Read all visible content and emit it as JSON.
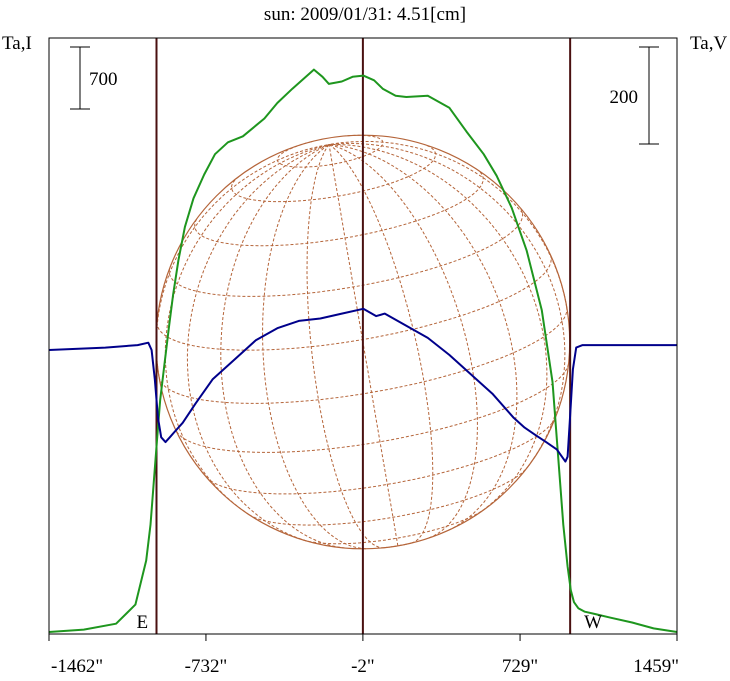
{
  "chart_data": {
    "type": "line",
    "title": "sun: 2009/01/31: 4.51[cm]",
    "title_color": "#1a1a8c",
    "y_left_label": "Ta,I",
    "y_right_label": "Ta,V",
    "x_ticks": [
      "-1462\"",
      "-732\"",
      "-2\"",
      "729\"",
      "1459\""
    ],
    "x_tick_values": [
      -1462,
      -732,
      -2,
      729,
      1459
    ],
    "xlim": [
      -1462,
      1459
    ],
    "scale_bars": [
      {
        "side": "left",
        "label": "700"
      },
      {
        "side": "right",
        "label": "200"
      }
    ],
    "limb_labels": {
      "east": "E",
      "west": "W"
    },
    "markers": [
      -962,
      -2,
      962
    ],
    "disk": {
      "center_x": -2,
      "radius": 962
    },
    "colors": {
      "intensity": "#1e961e",
      "polarization": "#00008b",
      "disk": "#b5653a",
      "markers": "#4a1010",
      "frame": "#000000"
    },
    "series": [
      {
        "name": "",
        "axis": "left",
        "color": "#1e961e",
        "x": [
          -1462,
          -1300,
          -1150,
          -1060,
          -1010,
          -990,
          -975,
          -960,
          -945,
          -925,
          -905,
          -885,
          -860,
          -830,
          -790,
          -740,
          -690,
          -630,
          -560,
          -460,
          -400,
          -330,
          -230,
          -190,
          -160,
          -100,
          -50,
          0,
          50,
          90,
          150,
          200,
          300,
          400,
          480,
          560,
          620,
          690,
          760,
          830,
          880,
          905,
          930,
          950,
          965,
          980,
          1000,
          1030,
          1080,
          1150,
          1250,
          1350,
          1459
        ],
        "y": [
          0,
          20,
          70,
          230,
          600,
          900,
          1250,
          1600,
          1950,
          2250,
          2550,
          2830,
          3120,
          3400,
          3640,
          3840,
          4010,
          4110,
          4160,
          4310,
          4440,
          4560,
          4720,
          4660,
          4600,
          4620,
          4660,
          4670,
          4630,
          4560,
          4500,
          4490,
          4500,
          4400,
          4200,
          4010,
          3830,
          3560,
          3200,
          2700,
          2100,
          1500,
          900,
          550,
          350,
          250,
          200,
          170,
          150,
          120,
          80,
          30,
          0
        ]
      },
      {
        "name": "",
        "axis": "right",
        "color": "#00008b",
        "x": [
          -1462,
          -1200,
          -1050,
          -1000,
          -985,
          -970,
          -955,
          -940,
          -920,
          -900,
          -880,
          -840,
          -780,
          -700,
          -600,
          -500,
          -400,
          -300,
          -200,
          -100,
          0,
          60,
          100,
          200,
          300,
          400,
          500,
          600,
          700,
          750,
          800,
          850,
          900,
          940,
          950,
          960,
          975,
          990,
          1020,
          1100,
          1250,
          1459
        ],
        "y": [
          0,
          5,
          10,
          15,
          0,
          -60,
          -140,
          -180,
          -190,
          -180,
          -170,
          -150,
          -110,
          -60,
          -20,
          20,
          45,
          60,
          65,
          75,
          85,
          70,
          75,
          50,
          25,
          -10,
          -50,
          -90,
          -140,
          -160,
          -175,
          -190,
          -205,
          -230,
          -220,
          -150,
          -40,
          5,
          10,
          10,
          10,
          10
        ]
      }
    ]
  }
}
